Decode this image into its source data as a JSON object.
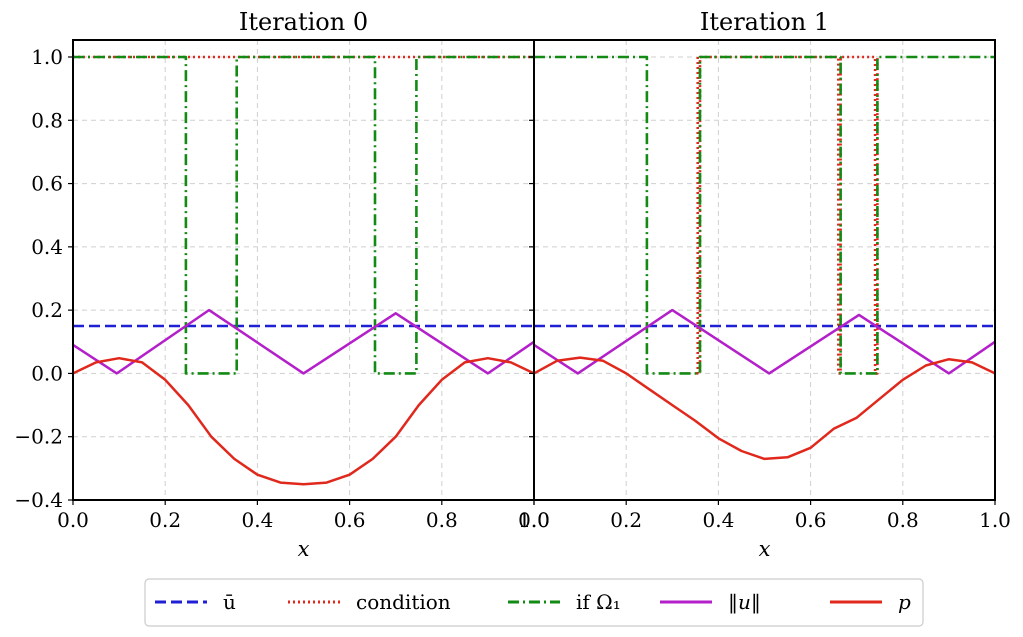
{
  "chart_data": [
    {
      "type": "line",
      "title": "Iteration 0",
      "xlabel": "x",
      "ylabel": "",
      "xlim": [
        0.0,
        1.0
      ],
      "ylim": [
        -0.4,
        1.05
      ],
      "x_ticks": [
        "0.0",
        "0.2",
        "0.4",
        "0.6",
        "0.8",
        "1.0"
      ],
      "y_ticks": [
        "−0.4",
        "−0.2",
        "0.0",
        "0.2",
        "0.4",
        "0.6",
        "0.8",
        "1.0"
      ],
      "grid": true,
      "series": [
        {
          "name": "ū",
          "style": "dashed",
          "color": "#1f1fd6",
          "points": [
            [
              0.0,
              0.15
            ],
            [
              1.0,
              0.15
            ]
          ]
        },
        {
          "name": "condition",
          "style": "dotted",
          "color": "#e0281c",
          "points": [
            [
              0.0,
              1.0
            ],
            [
              1.0,
              1.0
            ]
          ]
        },
        {
          "name": "if Ω₁",
          "style": "dashdot",
          "color": "#138a13",
          "points": [
            [
              0.0,
              1.0
            ],
            [
              0.245,
              1.0
            ],
            [
              0.245,
              0.0
            ],
            [
              0.355,
              0.0
            ],
            [
              0.355,
              1.0
            ],
            [
              0.655,
              1.0
            ],
            [
              0.655,
              0.0
            ],
            [
              0.745,
              0.0
            ],
            [
              0.745,
              1.0
            ],
            [
              1.0,
              1.0
            ]
          ]
        },
        {
          "name": "‖u‖",
          "style": "solid",
          "color": "#b31fc9",
          "points": [
            [
              0.0,
              0.09
            ],
            [
              0.095,
              0.0
            ],
            [
              0.295,
              0.2
            ],
            [
              0.5,
              0.0
            ],
            [
              0.7,
              0.19
            ],
            [
              0.9,
              0.0
            ],
            [
              1.0,
              0.1
            ]
          ]
        },
        {
          "name": "p",
          "style": "solid",
          "color": "#e0281c",
          "points": [
            [
              0.0,
              0.0
            ],
            [
              0.05,
              0.035
            ],
            [
              0.1,
              0.048
            ],
            [
              0.15,
              0.035
            ],
            [
              0.2,
              -0.02
            ],
            [
              0.25,
              -0.1
            ],
            [
              0.3,
              -0.2
            ],
            [
              0.35,
              -0.27
            ],
            [
              0.4,
              -0.32
            ],
            [
              0.45,
              -0.345
            ],
            [
              0.5,
              -0.35
            ],
            [
              0.55,
              -0.345
            ],
            [
              0.6,
              -0.32
            ],
            [
              0.65,
              -0.27
            ],
            [
              0.7,
              -0.2
            ],
            [
              0.75,
              -0.1
            ],
            [
              0.8,
              -0.02
            ],
            [
              0.85,
              0.035
            ],
            [
              0.9,
              0.048
            ],
            [
              0.95,
              0.035
            ],
            [
              1.0,
              0.0
            ]
          ]
        }
      ]
    },
    {
      "type": "line",
      "title": "Iteration 1",
      "xlabel": "x",
      "ylabel": "",
      "xlim": [
        0.0,
        1.0
      ],
      "ylim": [
        -0.4,
        1.05
      ],
      "x_ticks": [
        "0.0",
        "0.2",
        "0.4",
        "0.6",
        "0.8",
        "1.0"
      ],
      "y_ticks": [],
      "grid": true,
      "series": [
        {
          "name": "ū",
          "style": "dashed",
          "color": "#1f1fd6",
          "points": [
            [
              0.0,
              0.15
            ],
            [
              1.0,
              0.15
            ]
          ]
        },
        {
          "name": "condition",
          "style": "dotted",
          "color": "#e0281c",
          "points": [
            [
              0.355,
              1.0
            ],
            [
              0.355,
              0.0
            ],
            [
              0.36,
              0.0
            ],
            [
              0.36,
              1.0
            ],
            [
              0.66,
              1.0
            ],
            [
              0.66,
              0.0
            ],
            [
              0.665,
              0.0
            ],
            [
              0.665,
              1.0
            ],
            [
              0.74,
              1.0
            ],
            [
              0.74,
              0.0
            ],
            [
              0.745,
              0.0
            ],
            [
              0.745,
              1.0
            ]
          ]
        },
        {
          "name": "if Ω₁",
          "style": "dashdot",
          "color": "#138a13",
          "points": [
            [
              0.0,
              1.0
            ],
            [
              0.245,
              1.0
            ],
            [
              0.245,
              0.0
            ],
            [
              0.36,
              0.0
            ],
            [
              0.36,
              1.0
            ],
            [
              0.665,
              1.0
            ],
            [
              0.665,
              0.0
            ],
            [
              0.745,
              0.0
            ],
            [
              0.745,
              1.0
            ],
            [
              1.0,
              1.0
            ]
          ]
        },
        {
          "name": "‖u‖",
          "style": "solid",
          "color": "#b31fc9",
          "points": [
            [
              0.0,
              0.09
            ],
            [
              0.095,
              0.0
            ],
            [
              0.3,
              0.2
            ],
            [
              0.51,
              0.0
            ],
            [
              0.705,
              0.185
            ],
            [
              0.9,
              0.0
            ],
            [
              1.0,
              0.1
            ]
          ]
        },
        {
          "name": "p",
          "style": "solid",
          "color": "#e0281c",
          "points": [
            [
              0.0,
              0.0
            ],
            [
              0.05,
              0.04
            ],
            [
              0.1,
              0.05
            ],
            [
              0.15,
              0.04
            ],
            [
              0.2,
              0.0
            ],
            [
              0.25,
              -0.05
            ],
            [
              0.3,
              -0.1
            ],
            [
              0.35,
              -0.15
            ],
            [
              0.4,
              -0.205
            ],
            [
              0.45,
              -0.245
            ],
            [
              0.5,
              -0.27
            ],
            [
              0.55,
              -0.265
            ],
            [
              0.6,
              -0.235
            ],
            [
              0.65,
              -0.175
            ],
            [
              0.7,
              -0.14
            ],
            [
              0.75,
              -0.08
            ],
            [
              0.8,
              -0.02
            ],
            [
              0.85,
              0.025
            ],
            [
              0.9,
              0.045
            ],
            [
              0.95,
              0.035
            ],
            [
              1.0,
              0.0
            ]
          ]
        }
      ]
    }
  ],
  "legend": {
    "location": "bottom-center",
    "entries": [
      {
        "label": "ū",
        "style": "dashed",
        "color": "#1f1fd6"
      },
      {
        "label": "condition",
        "style": "dotted",
        "color": "#e0281c"
      },
      {
        "label": "if Ω₁",
        "style": "dashdot",
        "color": "#138a13"
      },
      {
        "label": "‖u‖",
        "style": "solid",
        "color": "#b31fc9"
      },
      {
        "label": "p",
        "style": "solid",
        "color": "#e0281c"
      }
    ]
  }
}
